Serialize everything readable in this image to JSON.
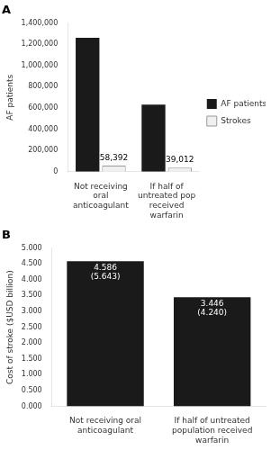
{
  "chart_data": [
    {
      "type": "bar",
      "title": "A",
      "ylabel": "AF patients",
      "categories": [
        "Not receiving\noral\nanticoagulant",
        "If half of\nuntreated pop\nreceived\nwarfarin"
      ],
      "series": [
        {
          "name": "AF patients",
          "color": "#1a1a1a",
          "values": [
            1262000,
            631000
          ]
        },
        {
          "name": "Strokes",
          "color": "#f0f0f0",
          "values": [
            58392,
            39012
          ],
          "value_labels": [
            "58,392",
            "39,012"
          ],
          "data_labels": true
        }
      ],
      "ylim": [
        0,
        1400000
      ],
      "yticks": [
        0,
        {
          "value": 200000,
          "label": "200,000"
        },
        {
          "value": 400000,
          "label": "400,000"
        },
        {
          "value": 600000,
          "label": "600,000"
        },
        {
          "value": 800000,
          "label": "800,000"
        },
        {
          "value": 1000000,
          "label": "1,000,000"
        },
        {
          "value": 1200000,
          "label": "1,200,000"
        },
        {
          "value": 1400000,
          "label": "1,400,000"
        }
      ],
      "grid": false,
      "legend": "right"
    },
    {
      "type": "bar",
      "title": "B",
      "ylabel": "Cost of stroke ($USD billion)",
      "categories": [
        "Not receiving oral\nanticoagulant",
        "If half of untreated\npopulation received\nwarfarin"
      ],
      "values": [
        4.586,
        3.446
      ],
      "value_labels": [
        "4.586\n(5.643)",
        "3.446\n(4.240)"
      ],
      "color": "#1a1a1a",
      "data_labels": true,
      "ylim": [
        0,
        5.0
      ],
      "yticks": [
        {
          "value": 0.0,
          "label": "0.000"
        },
        {
          "value": 0.5,
          "label": "0.500"
        },
        {
          "value": 1.0,
          "label": "1.000"
        },
        {
          "value": 1.5,
          "label": "1.500"
        },
        {
          "value": 2.0,
          "label": "2.000"
        },
        {
          "value": 2.5,
          "label": "2.500"
        },
        {
          "value": 3.0,
          "label": "3.000"
        },
        {
          "value": 3.5,
          "label": "3.500"
        },
        {
          "value": 4.0,
          "label": "4.000"
        },
        {
          "value": 4.5,
          "label": "4.500"
        },
        {
          "value": 5.0,
          "label": "5.000"
        }
      ],
      "grid": false
    }
  ]
}
